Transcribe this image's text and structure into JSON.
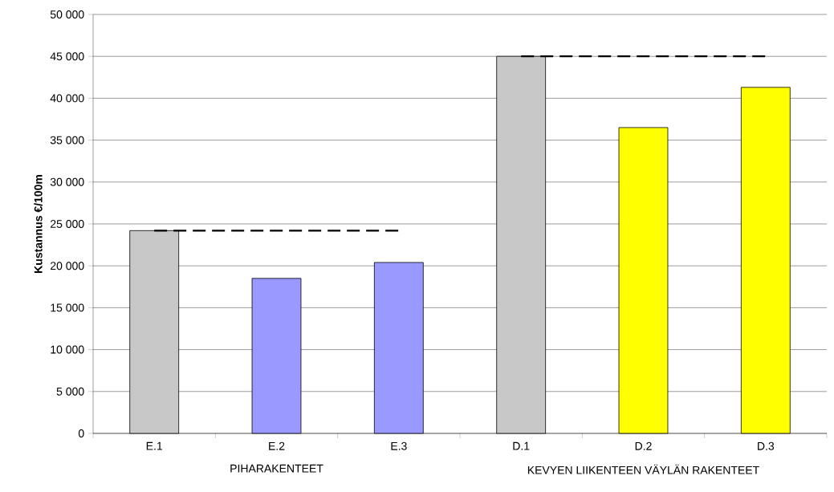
{
  "chart_data": {
    "type": "bar",
    "ylabel": "Kustannus €/100m",
    "categories": [
      "E.1",
      "E.2",
      "E.3",
      "D.1",
      "D.2",
      "D.3"
    ],
    "series": [
      {
        "values": [
          24200,
          18500,
          20400,
          45000,
          36500,
          41300
        ],
        "colors": [
          "#c8c8c8",
          "#9999ff",
          "#9999ff",
          "#c8c8c8",
          "#ffff00",
          "#ffff00"
        ]
      },
      {
        "type": "line",
        "values": [
          24200,
          24200,
          24200,
          null,
          null,
          null
        ],
        "color": "#000000",
        "line_style": "dashed",
        "marker": "none"
      },
      {
        "type": "line",
        "values": [
          null,
          null,
          null,
          45000,
          45000,
          45000
        ],
        "color": "#000000",
        "line_style": "dashed",
        "marker": "none"
      }
    ],
    "ylim": [
      0,
      50000
    ],
    "yticks": [
      0,
      {
        "value": 5000,
        "label": "5 000"
      },
      {
        "value": 10000,
        "label": "10 000"
      },
      {
        "value": 15000,
        "label": "15 000"
      },
      {
        "value": 20000,
        "label": "20 000"
      },
      {
        "value": 25000,
        "label": "25 000"
      },
      {
        "value": 30000,
        "label": "30 000"
      },
      {
        "value": 35000,
        "label": "35 000"
      },
      {
        "value": 40000,
        "label": "40 000"
      },
      {
        "value": 45000,
        "label": "45 000"
      },
      {
        "value": 50000,
        "label": "50 000"
      }
    ],
    "grid": "y",
    "annotations": [
      "PIHARAKENTEET",
      "KEVYEN LIIKENTEEN VÄYLÄN RAKENTEET"
    ]
  }
}
